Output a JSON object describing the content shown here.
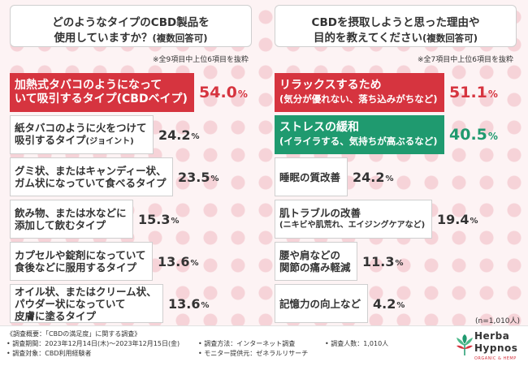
{
  "colors": {
    "highlight_red": "#d6343f",
    "highlight_green": "#1f9a6f",
    "bar_white": "#ffffff"
  },
  "chart_data": [
    {
      "type": "bar",
      "title_lines": [
        "どのようなタイプのCBD製品を",
        "使用していますか？",
        "(複数回答可)"
      ],
      "note": "※全9項目中上位6項目を抜粋",
      "items": [
        {
          "lines": [
            "加熱式タバコのようになって",
            "いて吸引するタイプ",
            "(CBDベイプ)"
          ],
          "value": 54.0,
          "display": "54.0",
          "highlight": "red"
        },
        {
          "lines": [
            "紙タバコのように火をつけて",
            "吸引するタイプ",
            "(ジョイント)"
          ],
          "value": 24.2,
          "display": "24.2",
          "highlight": ""
        },
        {
          "lines": [
            "グミ状、またはキャンディー状、",
            "ガム状になっていて食べるタイプ"
          ],
          "value": 23.5,
          "display": "23.5",
          "highlight": ""
        },
        {
          "lines": [
            "飲み物、または水などに",
            "添加して飲むタイプ"
          ],
          "value": 15.3,
          "display": "15.3",
          "highlight": ""
        },
        {
          "lines": [
            "カプセルや錠剤になっていて",
            "食後などに服用するタイプ"
          ],
          "value": 13.6,
          "display": "13.6",
          "highlight": ""
        },
        {
          "lines": [
            "オイル状、またはクリーム状、",
            "パウダー状になっていて",
            "皮膚に塗るタイプ"
          ],
          "value": 13.6,
          "display": "13.6",
          "highlight": ""
        }
      ],
      "unit": "%"
    },
    {
      "type": "bar",
      "title_lines": [
        "CBDを摂取しようと思った理由や",
        "目的を教えてください",
        "(複数回答可)"
      ],
      "note": "※全7項目中上位6項目を抜粋",
      "items": [
        {
          "lines": [
            "リラックスするため",
            "(気分が優れない、落ち込みがちなど)"
          ],
          "value": 51.1,
          "display": "51.1",
          "highlight": "red"
        },
        {
          "lines": [
            "ストレスの緩和",
            "(イライラする、気持ちが高ぶるなど)"
          ],
          "value": 40.5,
          "display": "40.5",
          "highlight": "green"
        },
        {
          "lines": [
            "睡眠の質改善"
          ],
          "value": 24.2,
          "display": "24.2",
          "highlight": ""
        },
        {
          "lines": [
            "肌トラブルの改善",
            "(ニキビや肌荒れ、エイジングケアなど)"
          ],
          "value": 19.4,
          "display": "19.4",
          "highlight": ""
        },
        {
          "lines": [
            "腰や肩などの",
            "関節の痛み軽減"
          ],
          "value": 11.3,
          "display": "11.3",
          "highlight": ""
        },
        {
          "lines": [
            "記憶力の向上など"
          ],
          "value": 4.2,
          "display": "4.2",
          "highlight": ""
        }
      ],
      "unit": "%"
    }
  ],
  "sample_note": "(n=1,010人)",
  "survey": {
    "overview": "《調査概要：「CBDの満足度」に関する調査》",
    "period": "• 調査期間：2023年12月14日(木)〜2023年12月15日(金)",
    "method": "• 調査方法：インターネット調査",
    "count": "• 調査人数：1,010人",
    "target": "• 調査対象：CBD利用経験者",
    "provider": "• モニター提供元：ゼネラルリサーチ"
  },
  "logo": {
    "line1": "Herba",
    "line2": "Hypnos",
    "tagline": "ORGANIC & HEMP"
  }
}
